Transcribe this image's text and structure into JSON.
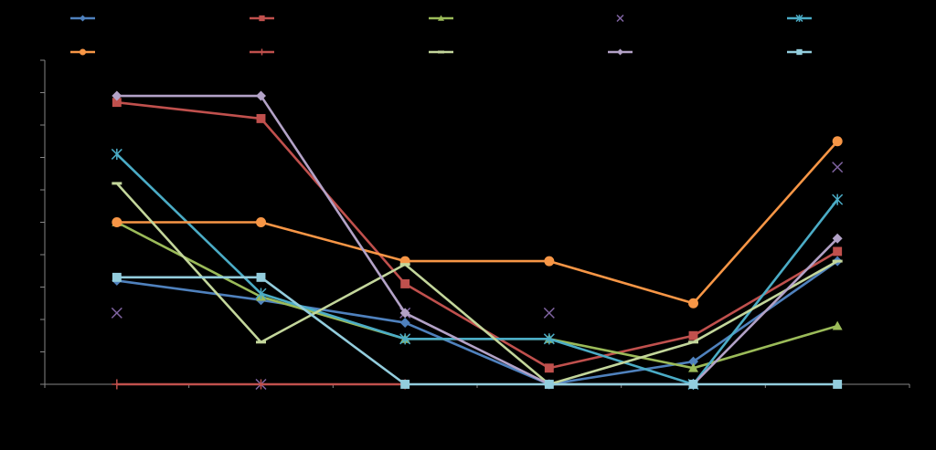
{
  "chart_data": {
    "type": "line",
    "title": "",
    "xlabel": "",
    "ylabel": "",
    "x": [
      1,
      2,
      3,
      4,
      5,
      6
    ],
    "ylim": [
      0,
      10
    ],
    "y_ticks": [
      0,
      1,
      2,
      3,
      4,
      5,
      6,
      7,
      8,
      9,
      10
    ],
    "grid": false,
    "legend_position": "top",
    "series": [
      {
        "color": "#4F81BD",
        "marker": "diamond",
        "values": [
          3.2,
          2.6,
          1.9,
          0.0,
          0.7,
          3.8
        ]
      },
      {
        "color": "#C0504D",
        "marker": "square",
        "values": [
          8.7,
          8.2,
          3.1,
          0.5,
          1.5,
          4.1
        ]
      },
      {
        "color": "#9BBB59",
        "marker": "triangle",
        "values": [
          5.0,
          2.7,
          1.4,
          1.4,
          0.5,
          1.8
        ]
      },
      {
        "color": "#8064A2",
        "marker": "x",
        "values": [
          2.2,
          0.0,
          2.2,
          2.2,
          null,
          6.7
        ]
      },
      {
        "color": "#4BACC6",
        "marker": "star",
        "values": [
          7.1,
          2.8,
          1.4,
          1.4,
          0.0,
          5.7
        ]
      },
      {
        "color": "#F79646",
        "marker": "circle",
        "values": [
          5.0,
          5.0,
          3.8,
          3.8,
          2.5,
          7.5
        ]
      },
      {
        "color": "#C0504D",
        "marker": "plus",
        "values": [
          0.0,
          0.0,
          0.0,
          null,
          null,
          null
        ]
      },
      {
        "color": "#C3D69B",
        "marker": "dash",
        "values": [
          6.2,
          1.3,
          3.7,
          0.0,
          1.3,
          3.8
        ]
      },
      {
        "color": "#B3A2C7",
        "marker": "diamond",
        "values": [
          8.9,
          8.9,
          2.2,
          0.0,
          0.0,
          4.5
        ]
      },
      {
        "color": "#93CDDD",
        "marker": "square",
        "values": [
          3.3,
          3.3,
          0.0,
          0.0,
          0.0,
          0.0
        ]
      }
    ]
  }
}
